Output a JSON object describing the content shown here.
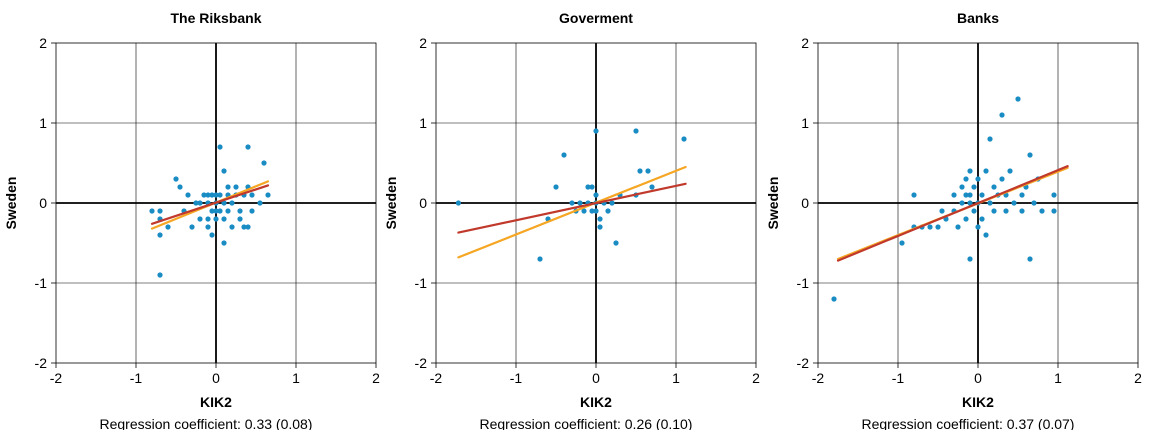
{
  "chart_data": [
    {
      "type": "scatter",
      "title": "The Riksbank",
      "xlabel": "KIK2",
      "ylabel": "Sweden",
      "xlim": [
        -2,
        2
      ],
      "ylim": [
        -2,
        2
      ],
      "xticks": [
        "-2",
        "-1",
        "0",
        "1",
        "2"
      ],
      "yticks": [
        "-2",
        "-1",
        "0",
        "1",
        "2"
      ],
      "grid": true,
      "note": "Regression coefficient: 0.33 (0.08)",
      "points": [
        {
          "x": -0.8,
          "y": -0.1
        },
        {
          "x": -0.7,
          "y": -0.1
        },
        {
          "x": -0.7,
          "y": -0.2
        },
        {
          "x": -0.7,
          "y": -0.4
        },
        {
          "x": -0.7,
          "y": -0.9
        },
        {
          "x": -0.6,
          "y": -0.3
        },
        {
          "x": -0.5,
          "y": 0.3
        },
        {
          "x": -0.45,
          "y": 0.2
        },
        {
          "x": -0.4,
          "y": -0.1
        },
        {
          "x": -0.35,
          "y": 0.1
        },
        {
          "x": -0.3,
          "y": -0.3
        },
        {
          "x": -0.25,
          "y": 0.0
        },
        {
          "x": -0.2,
          "y": 0.0
        },
        {
          "x": -0.2,
          "y": -0.2
        },
        {
          "x": -0.15,
          "y": 0.1
        },
        {
          "x": -0.1,
          "y": 0.1
        },
        {
          "x": -0.1,
          "y": 0.0
        },
        {
          "x": -0.1,
          "y": -0.2
        },
        {
          "x": -0.1,
          "y": -0.3
        },
        {
          "x": -0.05,
          "y": 0.1
        },
        {
          "x": -0.05,
          "y": -0.1
        },
        {
          "x": -0.05,
          "y": -0.4
        },
        {
          "x": 0.0,
          "y": 0.1
        },
        {
          "x": 0.0,
          "y": 0.0
        },
        {
          "x": 0.0,
          "y": -0.1
        },
        {
          "x": 0.0,
          "y": -0.2
        },
        {
          "x": 0.05,
          "y": 0.7
        },
        {
          "x": 0.05,
          "y": 0.1
        },
        {
          "x": 0.05,
          "y": -0.1
        },
        {
          "x": 0.1,
          "y": 0.4
        },
        {
          "x": 0.1,
          "y": 0.0
        },
        {
          "x": 0.1,
          "y": -0.2
        },
        {
          "x": 0.1,
          "y": -0.5
        },
        {
          "x": 0.15,
          "y": 0.2
        },
        {
          "x": 0.15,
          "y": 0.1
        },
        {
          "x": 0.15,
          "y": -0.1
        },
        {
          "x": 0.2,
          "y": 0.0
        },
        {
          "x": 0.2,
          "y": -0.3
        },
        {
          "x": 0.25,
          "y": 0.2
        },
        {
          "x": 0.25,
          "y": 0.1
        },
        {
          "x": 0.3,
          "y": -0.1
        },
        {
          "x": 0.3,
          "y": -0.2
        },
        {
          "x": 0.35,
          "y": 0.1
        },
        {
          "x": 0.35,
          "y": -0.3
        },
        {
          "x": 0.4,
          "y": 0.7
        },
        {
          "x": 0.4,
          "y": 0.2
        },
        {
          "x": 0.4,
          "y": -0.3
        },
        {
          "x": 0.45,
          "y": 0.1
        },
        {
          "x": 0.45,
          "y": -0.1
        },
        {
          "x": 0.55,
          "y": 0.0
        },
        {
          "x": 0.6,
          "y": 0.5
        },
        {
          "x": 0.65,
          "y": 0.1
        }
      ],
      "fit_lines": [
        {
          "color": "#f5a623",
          "x": [
            -0.8,
            0.65
          ],
          "y": [
            -0.32,
            0.27
          ]
        },
        {
          "color": "#c0392b",
          "x": [
            -0.8,
            0.65
          ],
          "y": [
            -0.26,
            0.22
          ]
        }
      ]
    },
    {
      "type": "scatter",
      "title": "Goverment",
      "xlabel": "KIK2",
      "ylabel": "Sweden",
      "xlim": [
        -2,
        2
      ],
      "ylim": [
        -2,
        2
      ],
      "xticks": [
        "-2",
        "-1",
        "0",
        "1",
        "2"
      ],
      "yticks": [
        "-2",
        "-1",
        "0",
        "1",
        "2"
      ],
      "grid": true,
      "note": "Regression coefficient: 0.26 (0.10)",
      "points": [
        {
          "x": -1.72,
          "y": 0.0
        },
        {
          "x": -0.7,
          "y": -0.7
        },
        {
          "x": -0.6,
          "y": -0.2
        },
        {
          "x": -0.5,
          "y": 0.2
        },
        {
          "x": -0.4,
          "y": 0.6
        },
        {
          "x": -0.3,
          "y": 0.0
        },
        {
          "x": -0.25,
          "y": -0.1
        },
        {
          "x": -0.2,
          "y": 0.0
        },
        {
          "x": -0.15,
          "y": -0.1
        },
        {
          "x": -0.1,
          "y": 0.2
        },
        {
          "x": -0.1,
          "y": 0.0
        },
        {
          "x": -0.05,
          "y": 0.2
        },
        {
          "x": -0.05,
          "y": -0.1
        },
        {
          "x": 0.0,
          "y": 0.9
        },
        {
          "x": 0.0,
          "y": 0.1
        },
        {
          "x": 0.0,
          "y": 0.0
        },
        {
          "x": 0.0,
          "y": -0.1
        },
        {
          "x": 0.05,
          "y": -0.2
        },
        {
          "x": 0.05,
          "y": -0.3
        },
        {
          "x": 0.1,
          "y": 0.0
        },
        {
          "x": 0.15,
          "y": -0.1
        },
        {
          "x": 0.2,
          "y": 0.0
        },
        {
          "x": 0.25,
          "y": -0.5
        },
        {
          "x": 0.3,
          "y": 0.1
        },
        {
          "x": 0.5,
          "y": 0.9
        },
        {
          "x": 0.5,
          "y": 0.1
        },
        {
          "x": 0.55,
          "y": 0.4
        },
        {
          "x": 0.65,
          "y": 0.4
        },
        {
          "x": 0.7,
          "y": 0.2
        },
        {
          "x": 1.1,
          "y": 0.8
        }
      ],
      "fit_lines": [
        {
          "color": "#f5a623",
          "x": [
            -1.72,
            1.12
          ],
          "y": [
            -0.68,
            0.45
          ]
        },
        {
          "color": "#c0392b",
          "x": [
            -1.72,
            1.12
          ],
          "y": [
            -0.37,
            0.24
          ]
        }
      ]
    },
    {
      "type": "scatter",
      "title": "Banks",
      "xlabel": "KIK2",
      "ylabel": "Sweden",
      "xlim": [
        -2,
        2
      ],
      "ylim": [
        -2,
        2
      ],
      "xticks": [
        "-2",
        "-1",
        "0",
        "1",
        "2"
      ],
      "yticks": [
        "-2",
        "-1",
        "0",
        "1",
        "2"
      ],
      "grid": true,
      "note": "Regression coefficient: 0.37 (0.07)",
      "points": [
        {
          "x": -1.8,
          "y": -1.2
        },
        {
          "x": -0.95,
          "y": -0.5
        },
        {
          "x": -0.8,
          "y": 0.1
        },
        {
          "x": -0.8,
          "y": -0.3
        },
        {
          "x": -0.7,
          "y": -0.3
        },
        {
          "x": -0.6,
          "y": -0.3
        },
        {
          "x": -0.5,
          "y": -0.3
        },
        {
          "x": -0.45,
          "y": -0.1
        },
        {
          "x": -0.4,
          "y": -0.2
        },
        {
          "x": -0.3,
          "y": 0.1
        },
        {
          "x": -0.3,
          "y": -0.1
        },
        {
          "x": -0.25,
          "y": -0.3
        },
        {
          "x": -0.2,
          "y": 0.2
        },
        {
          "x": -0.2,
          "y": 0.0
        },
        {
          "x": -0.15,
          "y": 0.3
        },
        {
          "x": -0.15,
          "y": 0.1
        },
        {
          "x": -0.15,
          "y": -0.2
        },
        {
          "x": -0.1,
          "y": 0.4
        },
        {
          "x": -0.1,
          "y": 0.1
        },
        {
          "x": -0.1,
          "y": 0.0
        },
        {
          "x": -0.1,
          "y": -0.7
        },
        {
          "x": -0.05,
          "y": 0.2
        },
        {
          "x": -0.05,
          "y": -0.1
        },
        {
          "x": 0.0,
          "y": 0.3
        },
        {
          "x": 0.0,
          "y": 0.0
        },
        {
          "x": 0.0,
          "y": -0.3
        },
        {
          "x": 0.05,
          "y": 0.1
        },
        {
          "x": 0.05,
          "y": -0.2
        },
        {
          "x": 0.1,
          "y": 0.4
        },
        {
          "x": 0.1,
          "y": -0.4
        },
        {
          "x": 0.15,
          "y": 0.8
        },
        {
          "x": 0.15,
          "y": 0.0
        },
        {
          "x": 0.2,
          "y": 0.2
        },
        {
          "x": 0.2,
          "y": -0.1
        },
        {
          "x": 0.25,
          "y": 0.1
        },
        {
          "x": 0.3,
          "y": 1.1
        },
        {
          "x": 0.3,
          "y": 0.3
        },
        {
          "x": 0.35,
          "y": 0.1
        },
        {
          "x": 0.35,
          "y": -0.1
        },
        {
          "x": 0.4,
          "y": 0.4
        },
        {
          "x": 0.45,
          "y": 0.0
        },
        {
          "x": 0.5,
          "y": 1.3
        },
        {
          "x": 0.55,
          "y": 0.1
        },
        {
          "x": 0.55,
          "y": -0.1
        },
        {
          "x": 0.6,
          "y": 0.2
        },
        {
          "x": 0.65,
          "y": 0.6
        },
        {
          "x": 0.65,
          "y": -0.7
        },
        {
          "x": 0.7,
          "y": 0.0
        },
        {
          "x": 0.75,
          "y": 0.3
        },
        {
          "x": 0.8,
          "y": -0.1
        },
        {
          "x": 0.95,
          "y": 0.1
        },
        {
          "x": 0.95,
          "y": -0.1
        }
      ],
      "fit_lines": [
        {
          "color": "#f5a623",
          "x": [
            -1.75,
            1.12
          ],
          "y": [
            -0.7,
            0.44
          ]
        },
        {
          "color": "#c0392b",
          "x": [
            -1.75,
            1.12
          ],
          "y": [
            -0.72,
            0.46
          ]
        }
      ]
    }
  ],
  "colors": {
    "points": "#1a8cc4",
    "grid": "#000000",
    "axis": "#000000"
  }
}
